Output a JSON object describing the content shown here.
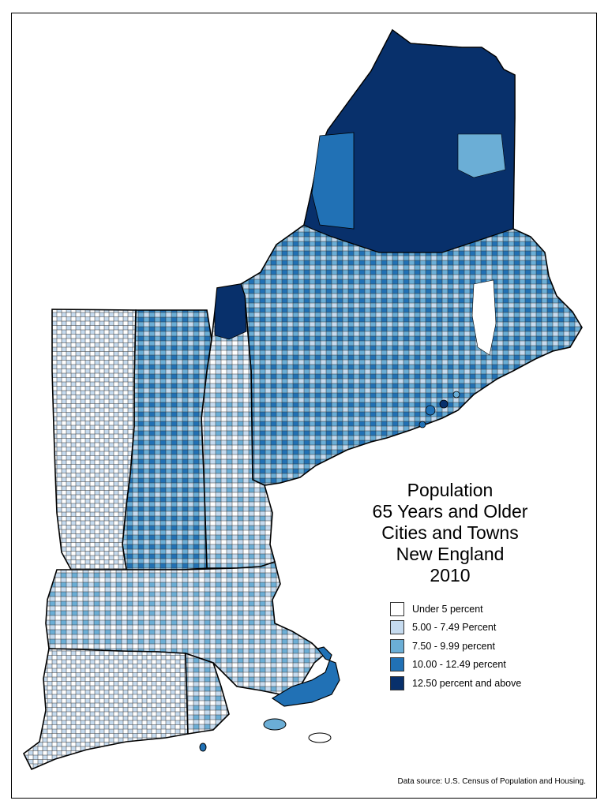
{
  "title": {
    "lines": [
      "Population",
      "65 Years and Older",
      "Cities and Towns",
      "New England",
      "2010"
    ]
  },
  "legend": {
    "items": [
      {
        "label": "Under 5 percent",
        "color": "#ffffff"
      },
      {
        "label": "5.00 - 7.49 Percent",
        "color": "#c6dbef"
      },
      {
        "label": "7.50 - 9.99 percent",
        "color": "#6baed6"
      },
      {
        "label": "10.00 - 12.49 percent",
        "color": "#2171b5"
      },
      {
        "label": "12.50 percent and above",
        "color": "#08306b"
      }
    ]
  },
  "source": "Data source: U.S. Census of Population and Housing.",
  "colors": {
    "under5": "#ffffff",
    "c5to7": "#c6dbef",
    "c7to10": "#6baed6",
    "c10to12": "#2171b5",
    "c12plus": "#08306b",
    "border": "#000000"
  }
}
